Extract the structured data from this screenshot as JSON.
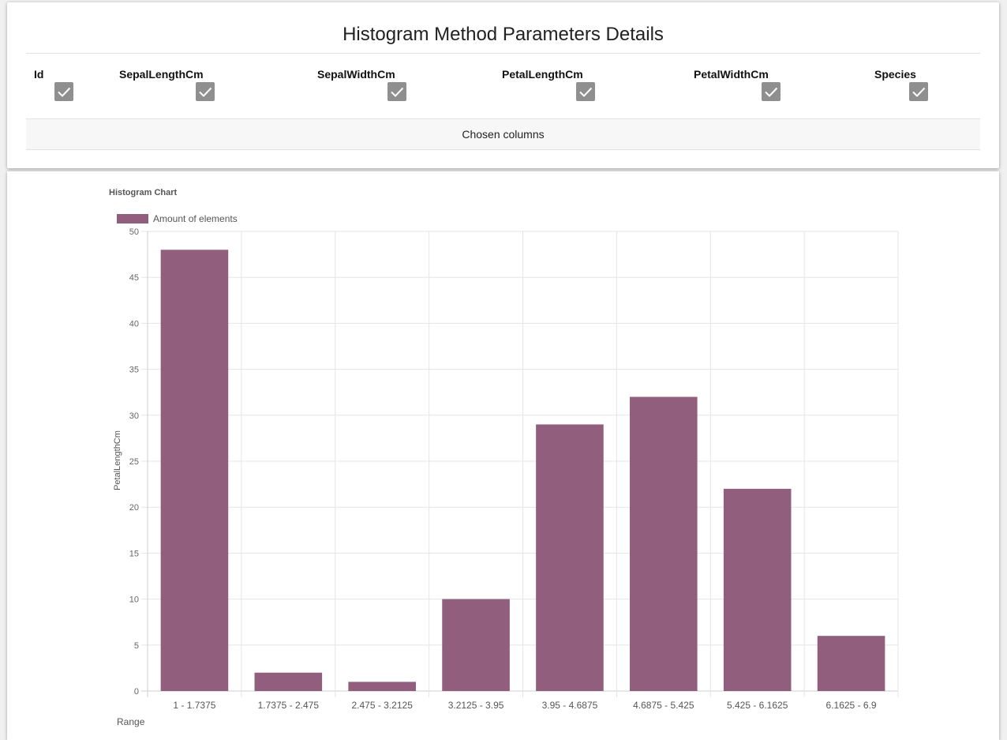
{
  "header": {
    "title": "Histogram Method Parameters Details"
  },
  "columns": [
    {
      "label": "Id",
      "checked": true
    },
    {
      "label": "SepalLengthCm",
      "checked": true
    },
    {
      "label": "SepalWidthCm",
      "checked": true
    },
    {
      "label": "PetalLengthCm",
      "checked": true
    },
    {
      "label": "PetalWidthCm",
      "checked": true
    },
    {
      "label": "Species",
      "checked": true
    }
  ],
  "chosen_label": "Chosen columns",
  "colors": {
    "bar_fill": "#925e7e",
    "checkbox": "#8f8f8f",
    "grid": "#e5e5e5"
  },
  "chart_data": {
    "type": "bar",
    "title": "Histogram Chart",
    "xlabel": "Range",
    "ylabel": "PetalLengthCm",
    "legend": "top-left",
    "grid": true,
    "ylim": [
      0,
      50
    ],
    "yticks": [
      "0",
      "5",
      "10",
      "15",
      "20",
      "25",
      "30",
      "35",
      "40",
      "45",
      "50"
    ],
    "categories": [
      "1 - 1.7375",
      "1.7375 - 2.475",
      "2.475 - 3.2125",
      "3.2125 - 3.95",
      "3.95 - 4.6875",
      "4.6875 - 5.425",
      "5.425 - 6.1625",
      "6.1625 - 6.9"
    ],
    "series": [
      {
        "name": "Amount of elements",
        "values": [
          48,
          2,
          1,
          10,
          29,
          32,
          22,
          6
        ]
      }
    ]
  }
}
